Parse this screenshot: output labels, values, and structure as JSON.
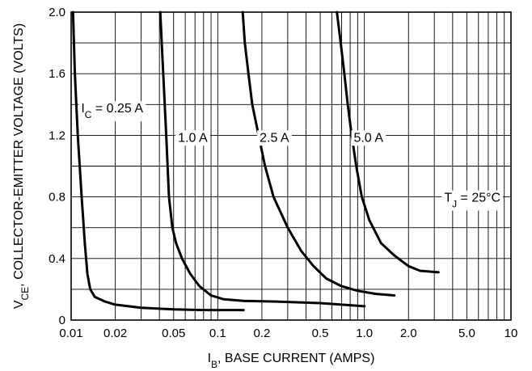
{
  "chart_data": {
    "type": "line",
    "title": "",
    "x_scale": "log",
    "xlim": [
      0.01,
      10
    ],
    "ylim": [
      0,
      2.0
    ],
    "grid": true,
    "xlabel": {
      "main": "I",
      "sub": "B",
      "rest": ", BASE CURRENT (AMPS)"
    },
    "ylabel": {
      "main": "V",
      "sub": "CE",
      "rest": ", COLLECTOR-EMITTER VOLTAGE (VOLTS)"
    },
    "x_ticks": [
      {
        "value": 0.01,
        "label": "0.01"
      },
      {
        "value": 0.02,
        "label": "0.02"
      },
      {
        "value": 0.05,
        "label": "0.05"
      },
      {
        "value": 0.1,
        "label": "0.1"
      },
      {
        "value": 0.2,
        "label": "0.2"
      },
      {
        "value": 0.5,
        "label": "0.5"
      },
      {
        "value": 1.0,
        "label": "1.0"
      },
      {
        "value": 2.0,
        "label": "2.0"
      },
      {
        "value": 5.0,
        "label": "5.0"
      },
      {
        "value": 10,
        "label": "10"
      }
    ],
    "y_ticks": [
      {
        "value": 0,
        "label": "0"
      },
      {
        "value": 0.4,
        "label": "0.4"
      },
      {
        "value": 0.8,
        "label": "0.8"
      },
      {
        "value": 1.2,
        "label": "1.2"
      },
      {
        "value": 1.6,
        "label": "1.6"
      },
      {
        "value": 2.0,
        "label": "2.0"
      }
    ],
    "series": [
      {
        "label": {
          "main": "I",
          "sub": "C",
          "rest": " = 0.25 A"
        },
        "points": [
          [
            0.0103,
            2.0
          ],
          [
            0.0106,
            1.6
          ],
          [
            0.0111,
            1.2
          ],
          [
            0.0118,
            0.8
          ],
          [
            0.0124,
            0.5
          ],
          [
            0.0129,
            0.3
          ],
          [
            0.0135,
            0.2
          ],
          [
            0.0145,
            0.15
          ],
          [
            0.017,
            0.12
          ],
          [
            0.02,
            0.1
          ],
          [
            0.03,
            0.08
          ],
          [
            0.05,
            0.07
          ],
          [
            0.08,
            0.065
          ],
          [
            0.15,
            0.065
          ]
        ]
      },
      {
        "label": {
          "main": "",
          "sub": "",
          "rest": "1.0 A"
        },
        "points": [
          [
            0.0405,
            2.0
          ],
          [
            0.0425,
            1.6
          ],
          [
            0.0445,
            1.2
          ],
          [
            0.0465,
            0.8
          ],
          [
            0.049,
            0.6
          ],
          [
            0.052,
            0.5
          ],
          [
            0.057,
            0.4
          ],
          [
            0.065,
            0.3
          ],
          [
            0.075,
            0.22
          ],
          [
            0.09,
            0.16
          ],
          [
            0.11,
            0.135
          ],
          [
            0.15,
            0.125
          ],
          [
            0.25,
            0.12
          ],
          [
            0.5,
            0.11
          ],
          [
            1.0,
            0.09
          ]
        ]
      },
      {
        "label": {
          "main": "",
          "sub": "",
          "rest": "2.5 A"
        },
        "points": [
          [
            0.148,
            2.0
          ],
          [
            0.153,
            1.8
          ],
          [
            0.162,
            1.6
          ],
          [
            0.172,
            1.4
          ],
          [
            0.19,
            1.2
          ],
          [
            0.21,
            1.0
          ],
          [
            0.24,
            0.8
          ],
          [
            0.3,
            0.6
          ],
          [
            0.37,
            0.45
          ],
          [
            0.45,
            0.35
          ],
          [
            0.55,
            0.27
          ],
          [
            0.7,
            0.22
          ],
          [
            0.9,
            0.19
          ],
          [
            1.2,
            0.17
          ],
          [
            1.6,
            0.16
          ]
        ]
      },
      {
        "label": {
          "main": "",
          "sub": "",
          "rest": "5.0 A"
        },
        "points": [
          [
            0.65,
            2.0
          ],
          [
            0.69,
            1.8
          ],
          [
            0.73,
            1.6
          ],
          [
            0.77,
            1.4
          ],
          [
            0.82,
            1.2
          ],
          [
            0.88,
            1.0
          ],
          [
            0.96,
            0.8
          ],
          [
            1.08,
            0.65
          ],
          [
            1.3,
            0.5
          ],
          [
            1.6,
            0.42
          ],
          [
            2.0,
            0.35
          ],
          [
            2.4,
            0.32
          ],
          [
            3.2,
            0.31
          ]
        ]
      }
    ],
    "condition": {
      "main": "T",
      "sub": "J",
      "rest": " = 25°C"
    }
  }
}
